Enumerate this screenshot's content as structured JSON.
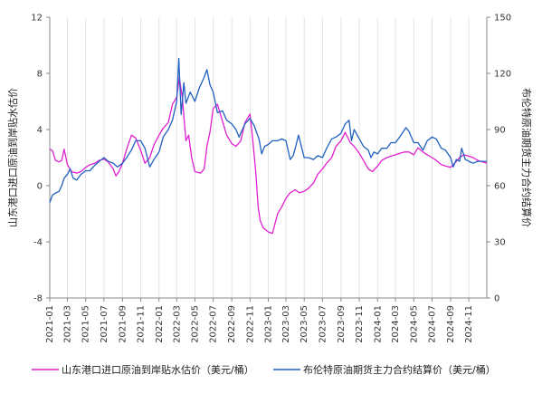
{
  "chart_data": {
    "type": "line",
    "title": "",
    "y_left": {
      "label": "山东港口进口原油到岸贴水估价",
      "ticks": [
        "-8",
        "-4",
        "0",
        "4",
        "8",
        "12"
      ],
      "lim": [
        -8,
        12
      ]
    },
    "y_right": {
      "label": "布伦特原油期货主力合约结算价",
      "ticks": [
        "0",
        "30",
        "60",
        "90",
        "120",
        "150"
      ],
      "lim": [
        0,
        150
      ]
    },
    "x_ticks": [
      "2021-01",
      "2021-03",
      "2021-05",
      "2021-07",
      "2021-09",
      "2021-11",
      "2022-01",
      "2022-03",
      "2022-05",
      "2022-07",
      "2022-09",
      "2022-11",
      "2023-01",
      "2023-03",
      "2023-05",
      "2023-07",
      "2023-09",
      "2023-11",
      "2024-01",
      "2024-03",
      "2024-05",
      "2024-07",
      "2024-09",
      "2024-11"
    ],
    "x_range": [
      "2021-01-01",
      "2024-12-31"
    ],
    "grid": "x-vertical",
    "legend": "bottom",
    "series": [
      {
        "name": "山东港口进口原油到岸贴水估价（美元/桶）",
        "axis": "left",
        "color": "#e020d0",
        "points": [
          [
            "2021-01-01",
            2.6
          ],
          [
            "2021-01-10",
            2.5
          ],
          [
            "2021-01-20",
            1.8
          ],
          [
            "2021-02-01",
            1.7
          ],
          [
            "2021-02-10",
            1.8
          ],
          [
            "2021-02-18",
            2.6
          ],
          [
            "2021-03-01",
            1.5
          ],
          [
            "2021-03-15",
            1.0
          ],
          [
            "2021-04-01",
            0.9
          ],
          [
            "2021-04-15",
            1.0
          ],
          [
            "2021-05-01",
            1.3
          ],
          [
            "2021-05-15",
            1.5
          ],
          [
            "2021-06-01",
            1.6
          ],
          [
            "2021-06-15",
            1.8
          ],
          [
            "2021-07-01",
            1.9
          ],
          [
            "2021-07-15",
            1.7
          ],
          [
            "2021-08-01",
            1.2
          ],
          [
            "2021-08-10",
            0.7
          ],
          [
            "2021-08-20",
            1.0
          ],
          [
            "2021-09-01",
            1.6
          ],
          [
            "2021-09-15",
            2.6
          ],
          [
            "2021-10-01",
            3.6
          ],
          [
            "2021-10-15",
            3.4
          ],
          [
            "2021-11-01",
            2.5
          ],
          [
            "2021-11-15",
            1.6
          ],
          [
            "2021-12-01",
            2.0
          ],
          [
            "2021-12-15",
            2.9
          ],
          [
            "2022-01-01",
            3.6
          ],
          [
            "2022-01-15",
            4.1
          ],
          [
            "2022-02-01",
            4.5
          ],
          [
            "2022-02-15",
            5.8
          ],
          [
            "2022-03-01",
            6.3
          ],
          [
            "2022-03-10",
            7.7
          ],
          [
            "2022-03-20",
            6.2
          ],
          [
            "2022-04-01",
            3.2
          ],
          [
            "2022-04-10",
            3.6
          ],
          [
            "2022-04-20",
            2.0
          ],
          [
            "2022-05-01",
            1.0
          ],
          [
            "2022-05-20",
            0.9
          ],
          [
            "2022-06-01",
            1.2
          ],
          [
            "2022-06-10",
            2.8
          ],
          [
            "2022-06-20",
            3.8
          ],
          [
            "2022-07-01",
            5.5
          ],
          [
            "2022-07-15",
            5.8
          ],
          [
            "2022-08-01",
            4.6
          ],
          [
            "2022-08-15",
            3.6
          ],
          [
            "2022-09-01",
            3.0
          ],
          [
            "2022-09-15",
            2.8
          ],
          [
            "2022-10-01",
            3.2
          ],
          [
            "2022-10-15",
            4.5
          ],
          [
            "2022-11-01",
            5.1
          ],
          [
            "2022-11-10",
            3.3
          ],
          [
            "2022-11-20",
            1.0
          ],
          [
            "2022-11-28",
            -1.5
          ],
          [
            "2022-12-05",
            -2.5
          ],
          [
            "2022-12-15",
            -3.0
          ],
          [
            "2023-01-01",
            -3.3
          ],
          [
            "2023-01-15",
            -3.4
          ],
          [
            "2023-02-01",
            -2.0
          ],
          [
            "2023-02-15",
            -1.5
          ],
          [
            "2023-03-01",
            -0.9
          ],
          [
            "2023-03-15",
            -0.5
          ],
          [
            "2023-04-01",
            -0.3
          ],
          [
            "2023-04-15",
            -0.5
          ],
          [
            "2023-05-01",
            -0.4
          ],
          [
            "2023-05-15",
            -0.2
          ],
          [
            "2023-06-01",
            0.2
          ],
          [
            "2023-06-15",
            0.8
          ],
          [
            "2023-07-01",
            1.2
          ],
          [
            "2023-07-15",
            1.6
          ],
          [
            "2023-08-01",
            2.0
          ],
          [
            "2023-08-15",
            2.8
          ],
          [
            "2023-09-01",
            3.2
          ],
          [
            "2023-09-15",
            3.8
          ],
          [
            "2023-10-01",
            3.1
          ],
          [
            "2023-10-15",
            2.8
          ],
          [
            "2023-11-01",
            2.3
          ],
          [
            "2023-11-15",
            1.8
          ],
          [
            "2023-12-01",
            1.2
          ],
          [
            "2023-12-15",
            1.0
          ],
          [
            "2024-01-01",
            1.4
          ],
          [
            "2024-01-15",
            1.8
          ],
          [
            "2024-02-01",
            2.0
          ],
          [
            "2024-02-15",
            2.1
          ],
          [
            "2024-03-01",
            2.2
          ],
          [
            "2024-03-15",
            2.3
          ],
          [
            "2024-04-01",
            2.4
          ],
          [
            "2024-04-15",
            2.4
          ],
          [
            "2024-05-01",
            2.2
          ],
          [
            "2024-05-15",
            2.7
          ],
          [
            "2024-06-01",
            2.4
          ],
          [
            "2024-06-15",
            2.2
          ],
          [
            "2024-07-01",
            2.0
          ],
          [
            "2024-07-15",
            1.8
          ],
          [
            "2024-08-01",
            1.5
          ],
          [
            "2024-08-15",
            1.4
          ],
          [
            "2024-09-01",
            1.3
          ],
          [
            "2024-09-15",
            1.6
          ],
          [
            "2024-10-01",
            2.0
          ],
          [
            "2024-10-15",
            2.2
          ],
          [
            "2024-11-01",
            2.1
          ],
          [
            "2024-11-15",
            2.0
          ],
          [
            "2024-12-01",
            1.8
          ],
          [
            "2024-12-31",
            1.6
          ]
        ]
      },
      {
        "name": "布伦特原油期货主力合约结算价（美元/桶）",
        "axis": "right",
        "color": "#2060c0",
        "points": [
          [
            "2021-01-01",
            51
          ],
          [
            "2021-01-10",
            55
          ],
          [
            "2021-01-20",
            56
          ],
          [
            "2021-02-01",
            57
          ],
          [
            "2021-02-10",
            60
          ],
          [
            "2021-02-18",
            64
          ],
          [
            "2021-03-01",
            66
          ],
          [
            "2021-03-10",
            69
          ],
          [
            "2021-03-20",
            64
          ],
          [
            "2021-04-01",
            63
          ],
          [
            "2021-04-15",
            66
          ],
          [
            "2021-05-01",
            68
          ],
          [
            "2021-05-15",
            68
          ],
          [
            "2021-06-01",
            71
          ],
          [
            "2021-06-15",
            73
          ],
          [
            "2021-07-01",
            75
          ],
          [
            "2021-07-15",
            73
          ],
          [
            "2021-08-01",
            72
          ],
          [
            "2021-08-15",
            70
          ],
          [
            "2021-09-01",
            72
          ],
          [
            "2021-09-15",
            75
          ],
          [
            "2021-10-01",
            79
          ],
          [
            "2021-10-15",
            84
          ],
          [
            "2021-11-01",
            84
          ],
          [
            "2021-11-15",
            80
          ],
          [
            "2021-12-01",
            70
          ],
          [
            "2021-12-15",
            74
          ],
          [
            "2022-01-01",
            78
          ],
          [
            "2022-01-15",
            86
          ],
          [
            "2022-02-01",
            90
          ],
          [
            "2022-02-15",
            95
          ],
          [
            "2022-03-01",
            105
          ],
          [
            "2022-03-08",
            128
          ],
          [
            "2022-03-16",
            98
          ],
          [
            "2022-03-25",
            115
          ],
          [
            "2022-04-01",
            104
          ],
          [
            "2022-04-15",
            110
          ],
          [
            "2022-05-01",
            105
          ],
          [
            "2022-05-15",
            112
          ],
          [
            "2022-06-01",
            118
          ],
          [
            "2022-06-10",
            122
          ],
          [
            "2022-06-20",
            114
          ],
          [
            "2022-07-01",
            110
          ],
          [
            "2022-07-15",
            99
          ],
          [
            "2022-08-01",
            100
          ],
          [
            "2022-08-15",
            95
          ],
          [
            "2022-09-01",
            93
          ],
          [
            "2022-09-15",
            90
          ],
          [
            "2022-09-25",
            86
          ],
          [
            "2022-10-01",
            88
          ],
          [
            "2022-10-15",
            93
          ],
          [
            "2022-11-01",
            96
          ],
          [
            "2022-11-15",
            92
          ],
          [
            "2022-12-01",
            85
          ],
          [
            "2022-12-10",
            77
          ],
          [
            "2022-12-20",
            81
          ],
          [
            "2023-01-01",
            82
          ],
          [
            "2023-01-15",
            84
          ],
          [
            "2023-02-01",
            84
          ],
          [
            "2023-02-15",
            85
          ],
          [
            "2023-03-01",
            84
          ],
          [
            "2023-03-15",
            74
          ],
          [
            "2023-03-25",
            76
          ],
          [
            "2023-04-01",
            80
          ],
          [
            "2023-04-12",
            87
          ],
          [
            "2023-05-01",
            75
          ],
          [
            "2023-05-15",
            75
          ],
          [
            "2023-06-01",
            74
          ],
          [
            "2023-06-15",
            76
          ],
          [
            "2023-07-01",
            75
          ],
          [
            "2023-07-15",
            80
          ],
          [
            "2023-08-01",
            85
          ],
          [
            "2023-08-15",
            86
          ],
          [
            "2023-09-01",
            88
          ],
          [
            "2023-09-15",
            93
          ],
          [
            "2023-09-28",
            95
          ],
          [
            "2023-10-06",
            84
          ],
          [
            "2023-10-15",
            90
          ],
          [
            "2023-11-01",
            85
          ],
          [
            "2023-11-15",
            81
          ],
          [
            "2023-12-01",
            79
          ],
          [
            "2023-12-10",
            75
          ],
          [
            "2023-12-20",
            78
          ],
          [
            "2024-01-01",
            77
          ],
          [
            "2024-01-15",
            80
          ],
          [
            "2024-02-01",
            80
          ],
          [
            "2024-02-15",
            83
          ],
          [
            "2024-03-01",
            83
          ],
          [
            "2024-03-15",
            86
          ],
          [
            "2024-04-05",
            91
          ],
          [
            "2024-04-15",
            89
          ],
          [
            "2024-05-01",
            83
          ],
          [
            "2024-05-15",
            83
          ],
          [
            "2024-06-01",
            79
          ],
          [
            "2024-06-15",
            84
          ],
          [
            "2024-07-01",
            86
          ],
          [
            "2024-07-15",
            85
          ],
          [
            "2024-08-01",
            80
          ],
          [
            "2024-08-15",
            79
          ],
          [
            "2024-09-01",
            75
          ],
          [
            "2024-09-10",
            70
          ],
          [
            "2024-09-20",
            74
          ],
          [
            "2024-10-01",
            73
          ],
          [
            "2024-10-08",
            80
          ],
          [
            "2024-10-20",
            74
          ],
          [
            "2024-11-01",
            73
          ],
          [
            "2024-11-15",
            72
          ],
          [
            "2024-12-01",
            73
          ],
          [
            "2024-12-31",
            73
          ]
        ]
      }
    ]
  }
}
